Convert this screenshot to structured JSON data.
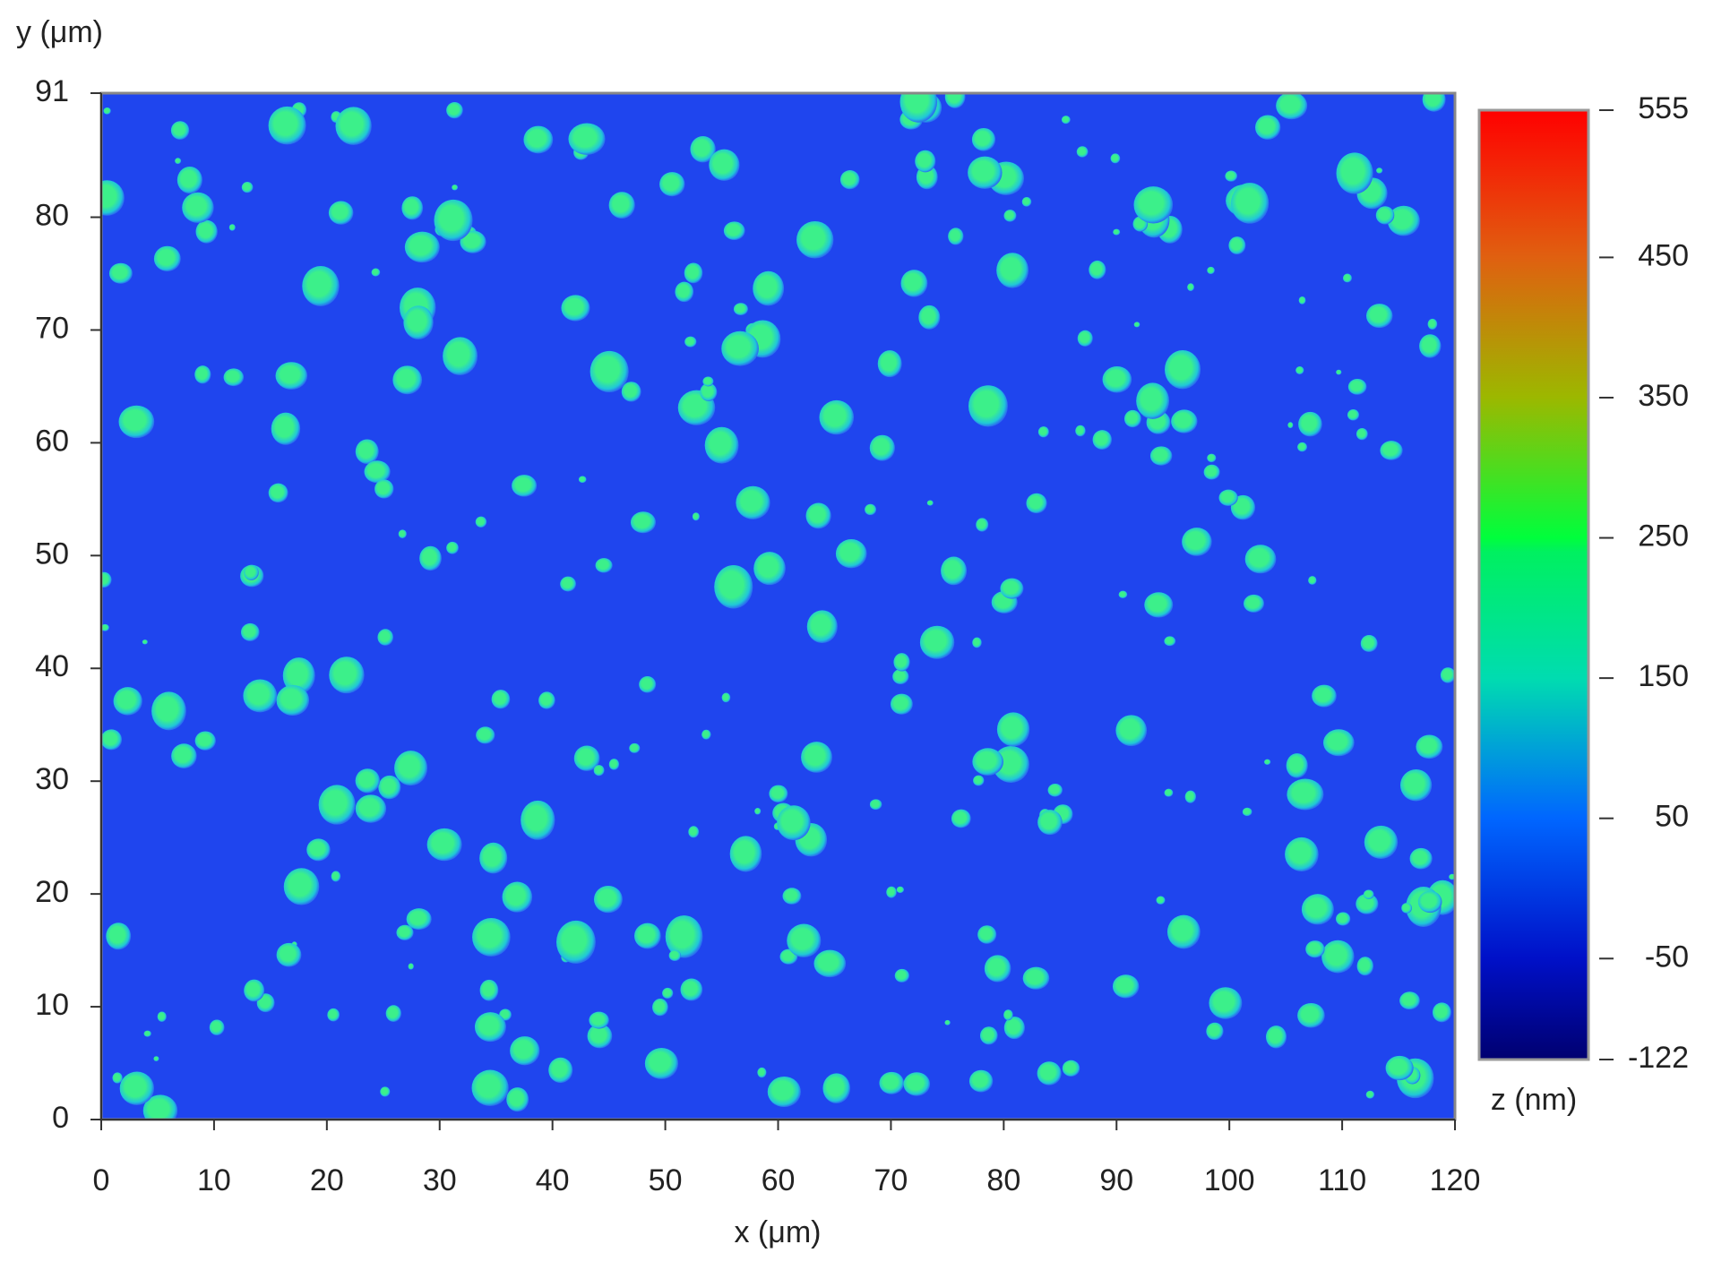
{
  "chart_data": {
    "type": "afm-image",
    "xlabel": "x (μm)",
    "ylabel": "y (μm)",
    "zlabel": "z (nm)",
    "xlim": [
      0,
      120
    ],
    "xticks": [
      0,
      10,
      20,
      30,
      40,
      50,
      60,
      70,
      80,
      90,
      100,
      110,
      120
    ],
    "ylim": [
      0,
      91
    ],
    "yticks": [
      0,
      10,
      20,
      30,
      40,
      50,
      60,
      70,
      80,
      91
    ],
    "zlim": [
      -122,
      555
    ],
    "zticks": [
      -122,
      -50,
      50,
      150,
      250,
      350,
      450,
      555
    ],
    "background_color": "#1f45ee",
    "droplet_color": "#3cf08a",
    "colorscale": [
      [
        -122,
        "#000070"
      ],
      [
        -50,
        "#0010c8"
      ],
      [
        50,
        "#0066ff"
      ],
      [
        150,
        "#00dcb0"
      ],
      [
        240,
        "#00f060"
      ],
      [
        250,
        "#00ff3c"
      ],
      [
        350,
        "#9cb800"
      ],
      [
        450,
        "#e06010"
      ],
      [
        555,
        "#ff0000"
      ]
    ]
  }
}
